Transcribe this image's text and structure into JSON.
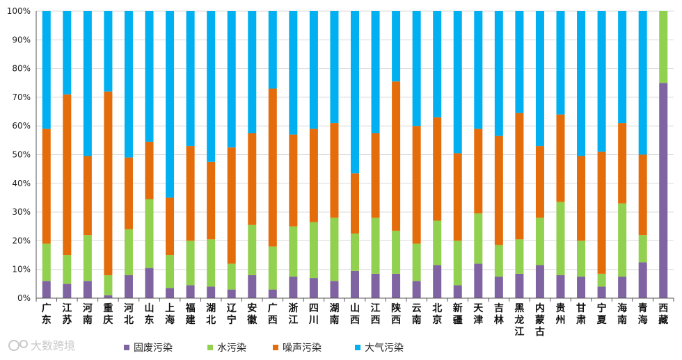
{
  "chart_data": {
    "type": "bar",
    "stacked": true,
    "percent": true,
    "categories": [
      "广东",
      "江苏",
      "河南",
      "重庆",
      "河北",
      "山东",
      "上海",
      "福建",
      "湖北",
      "辽宁",
      "安徽",
      "广西",
      "浙江",
      "四川",
      "湖南",
      "山西",
      "江西",
      "陕西",
      "云南",
      "北京",
      "新疆",
      "天津",
      "吉林",
      "黑龙江",
      "内蒙古",
      "贵州",
      "甘肃",
      "宁夏",
      "海南",
      "青海",
      "西藏"
    ],
    "y_ticks": [
      "0%",
      "10%",
      "20%",
      "30%",
      "40%",
      "50%",
      "60%",
      "70%",
      "80%",
      "90%",
      "100%"
    ],
    "ylim": [
      0,
      100
    ],
    "legend_position": "bottom",
    "series": [
      {
        "name": "固废污染",
        "color": "#8064a2",
        "values": [
          6,
          5,
          6,
          1,
          8,
          10.5,
          3.5,
          4.5,
          4,
          3,
          8,
          3,
          7.5,
          7,
          6,
          9.5,
          8.5,
          8.5,
          6,
          11.5,
          4.5,
          12,
          7.5,
          8.5,
          11.5,
          8,
          7.5,
          4,
          7.5,
          12.5,
          75
        ]
      },
      {
        "name": "水污染",
        "color": "#92d050",
        "values": [
          13,
          10,
          16,
          7,
          16,
          24,
          11.5,
          15.5,
          16.5,
          9,
          17.5,
          15,
          17.5,
          19.5,
          22,
          13,
          19.5,
          15,
          13,
          15.5,
          15.5,
          17.5,
          11,
          12,
          16.5,
          25.5,
          12.5,
          4.5,
          25.5,
          9.5,
          25
        ]
      },
      {
        "name": "噪声污染",
        "color": "#e46c0a",
        "values": [
          40,
          56,
          27.5,
          64,
          25,
          20,
          20,
          33,
          27,
          40.5,
          32,
          55,
          32,
          32.5,
          33,
          21,
          29.5,
          52,
          41,
          36,
          30.5,
          29.5,
          38,
          44,
          25,
          30.5,
          29.5,
          42.5,
          28,
          28,
          0
        ]
      },
      {
        "name": "大气污染",
        "color": "#00b0f0",
        "values": [
          41,
          29,
          50.5,
          28,
          51,
          45.5,
          65,
          47,
          52.5,
          47.5,
          42.5,
          27,
          43,
          41,
          39,
          56.5,
          42.5,
          24.5,
          40,
          37,
          49.5,
          41,
          43.5,
          35.5,
          47,
          36,
          50.5,
          49,
          39,
          50,
          0
        ]
      }
    ],
    "watermark": "大数跨境"
  }
}
